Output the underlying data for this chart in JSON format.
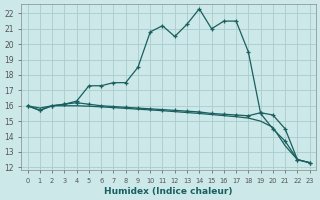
{
  "xlabel": "Humidex (Indice chaleur)",
  "bg_color": "#cce8e8",
  "grid_color": "#aacccc",
  "line_color": "#1a5f5f",
  "xlim": [
    -0.5,
    23.5
  ],
  "ylim": [
    11.8,
    22.6
  ],
  "yticks": [
    12,
    13,
    14,
    15,
    16,
    17,
    18,
    19,
    20,
    21,
    22
  ],
  "xticks": [
    0,
    1,
    2,
    3,
    4,
    5,
    6,
    7,
    8,
    9,
    10,
    11,
    12,
    13,
    14,
    15,
    16,
    17,
    18,
    19,
    20,
    21,
    22,
    23
  ],
  "series1_x": [
    0,
    1,
    2,
    3,
    4,
    5,
    6,
    7,
    8,
    9,
    10,
    11,
    12,
    13,
    14,
    15,
    16,
    17,
    18,
    19,
    20,
    21,
    22,
    23
  ],
  "series1_y": [
    16.0,
    15.7,
    16.0,
    16.1,
    16.3,
    17.3,
    17.3,
    17.5,
    17.5,
    18.5,
    20.8,
    21.2,
    20.5,
    21.3,
    22.3,
    21.0,
    21.5,
    21.5,
    19.5,
    15.5,
    14.5,
    13.7,
    12.5,
    12.3
  ],
  "series2_x": [
    0,
    1,
    2,
    3,
    4,
    5,
    6,
    7,
    8,
    9,
    10,
    11,
    12,
    13,
    14,
    15,
    16,
    17,
    18,
    19,
    20,
    21,
    22,
    23
  ],
  "series2_y": [
    16.0,
    15.7,
    16.0,
    16.1,
    16.2,
    16.1,
    16.0,
    15.95,
    15.9,
    15.85,
    15.8,
    15.75,
    15.7,
    15.65,
    15.6,
    15.5,
    15.45,
    15.4,
    15.35,
    15.55,
    15.4,
    14.5,
    12.5,
    12.3
  ],
  "series3_x": [
    0,
    1,
    2,
    3,
    4,
    5,
    6,
    7,
    8,
    9,
    10,
    11,
    12,
    13,
    14,
    15,
    16,
    17,
    18,
    19,
    20,
    21,
    22,
    23
  ],
  "series3_y": [
    16.0,
    15.85,
    16.0,
    16.0,
    16.0,
    15.97,
    15.93,
    15.88,
    15.83,
    15.78,
    15.73,
    15.68,
    15.62,
    15.56,
    15.5,
    15.43,
    15.36,
    15.29,
    15.2,
    15.0,
    14.6,
    13.4,
    12.5,
    12.3
  ]
}
